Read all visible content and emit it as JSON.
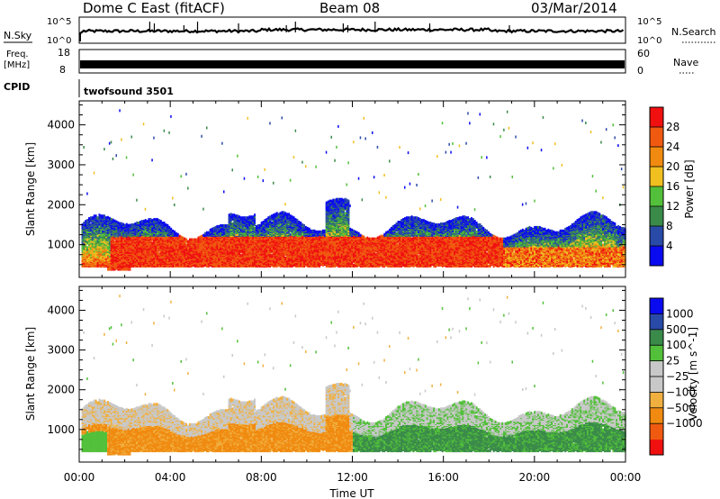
{
  "header": {
    "station": "Dome C East (fitACF)",
    "beam": "Beam 08",
    "date": "03/Mar/2014"
  },
  "params": {
    "nsky_label": "N.Sky",
    "nsky_top": "10^5",
    "nsky_bottom": "10^0",
    "nsearch_label": "N.Search",
    "nsearch_top": "10^5",
    "nsearch_bottom": "10^0",
    "freq_label": "Freq.",
    "freq_unit": "[MHz]",
    "freq_top": "18",
    "freq_bottom": "8",
    "nave_label": "Nave",
    "nave_top": "60",
    "nave_bottom": "0",
    "cpid_label": "CPID",
    "cpid_value": "twofsound 3501"
  },
  "colors": {
    "power_scale": [
      "#0a0af0",
      "#2a4aa8",
      "#3a8a4a",
      "#52c03a",
      "#f0c020",
      "#f08a10",
      "#f05a10",
      "#f01010"
    ],
    "velocity_scale": [
      "#f01010",
      "#f05a10",
      "#f08a10",
      "#f0b040",
      "#c8c8c8",
      "#c8c8c8",
      "#52c03a",
      "#3a8a4a",
      "#2a4aa8",
      "#0a0af0"
    ]
  },
  "chart_data": [
    {
      "type": "heatmap",
      "name": "power",
      "ylabel": "Slant Range [km]",
      "xlim": [
        0,
        24
      ],
      "ylim": [
        180,
        4600
      ],
      "yticks": [
        "1000",
        "2000",
        "3000",
        "4000"
      ],
      "colorbar": {
        "label": "Power [dB]",
        "ticks": [
          "4",
          "8",
          "12",
          "16",
          "20",
          "24",
          "28"
        ],
        "range": [
          0,
          32
        ]
      }
    },
    {
      "type": "heatmap",
      "name": "velocity",
      "ylabel": "Slant Range [km]",
      "xlabel": "Time UT",
      "xlim": [
        0,
        24
      ],
      "ylim": [
        180,
        4600
      ],
      "xticks": [
        "00:00",
        "04:00",
        "08:00",
        "12:00",
        "16:00",
        "20:00",
        "00:00"
      ],
      "yticks": [
        "1000",
        "2000",
        "3000",
        "4000"
      ],
      "colorbar": {
        "label": "Velocity [m s^-1]",
        "ticks": [
          "1000",
          "500",
          "100",
          "25",
          "−25",
          "−100",
          "−500",
          "−1000"
        ]
      }
    }
  ]
}
